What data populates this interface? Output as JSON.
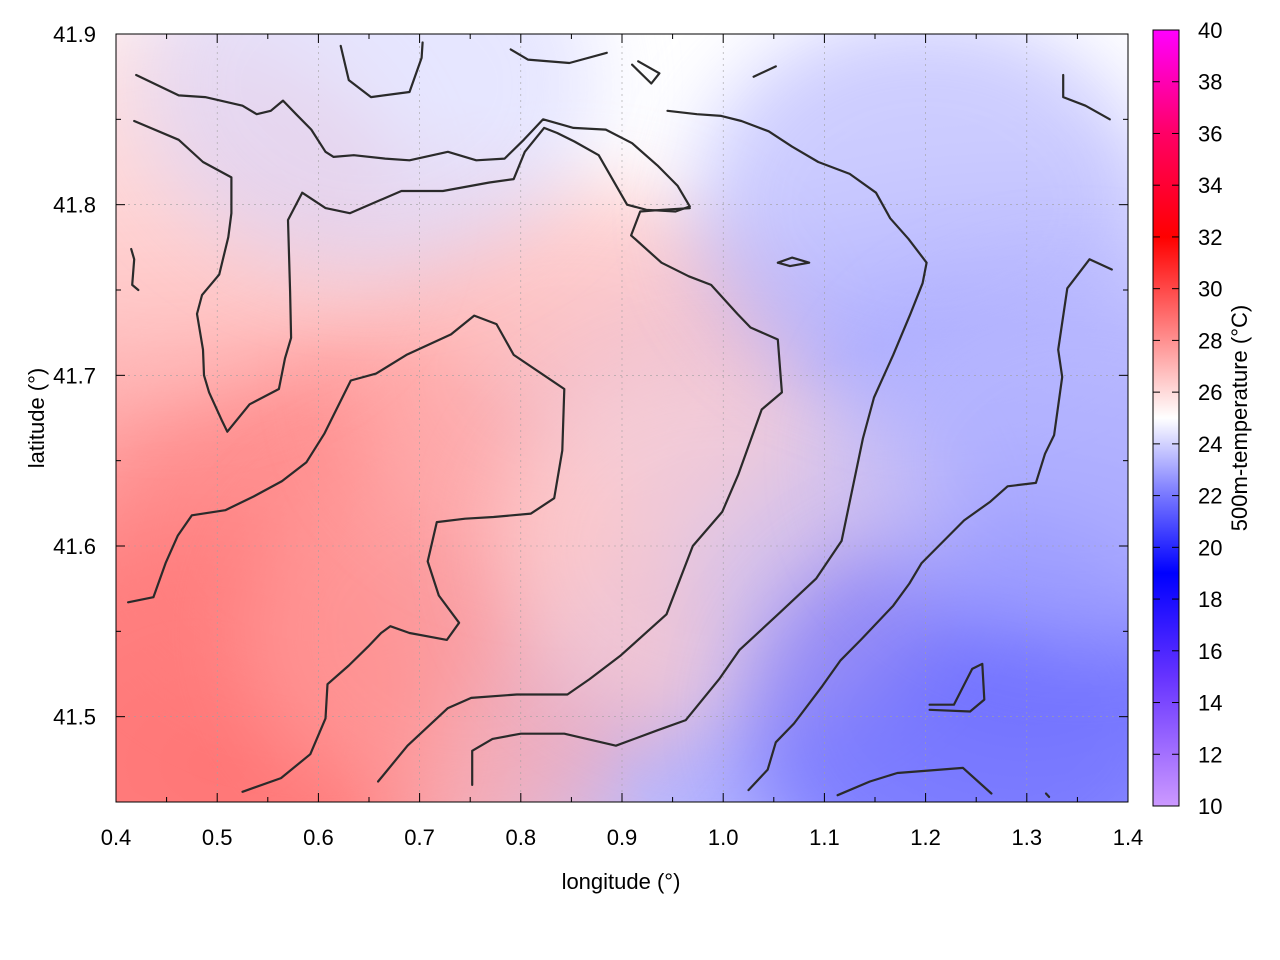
{
  "chart_data": {
    "type": "heatmap",
    "title": "",
    "xlabel": "longitude (°)",
    "ylabel": "latitude (°)",
    "colorbar_label": "500m-temperature (°C)",
    "xlim": [
      0.4,
      1.4
    ],
    "ylim": [
      41.45,
      41.9
    ],
    "x_ticks": [
      "0.4",
      "0.5",
      "0.6",
      "0.7",
      "0.8",
      "0.9",
      "1.0",
      "1.1",
      "1.2",
      "1.3",
      "1.4"
    ],
    "y_ticks": [
      "41.5",
      "41.6",
      "41.7",
      "41.8",
      "41.9"
    ],
    "colorbar_range": [
      10,
      40
    ],
    "colorbar_ticks": [
      "10",
      "12",
      "14",
      "16",
      "18",
      "20",
      "22",
      "24",
      "26",
      "28",
      "30",
      "32",
      "34",
      "36",
      "38",
      "40"
    ],
    "colormap": [
      {
        "value": 10,
        "color": "#cc99ff"
      },
      {
        "value": 15,
        "color": "#6633ff"
      },
      {
        "value": 19,
        "color": "#0000ff"
      },
      {
        "value": 22,
        "color": "#7777ff"
      },
      {
        "value": 25,
        "color": "#ffffff"
      },
      {
        "value": 28,
        "color": "#ff9090"
      },
      {
        "value": 32,
        "color": "#ff0000"
      },
      {
        "value": 36,
        "color": "#ff0066"
      },
      {
        "value": 40,
        "color": "#ff00ff"
      }
    ],
    "grid": true,
    "field_regions": [
      {
        "lon": 0.48,
        "lat": 41.5,
        "temp": 29.0
      },
      {
        "lon": 0.6,
        "lat": 41.6,
        "temp": 28.5
      },
      {
        "lon": 0.75,
        "lat": 41.55,
        "temp": 27.5
      },
      {
        "lon": 0.85,
        "lat": 41.7,
        "temp": 27.0
      },
      {
        "lon": 0.45,
        "lat": 41.8,
        "temp": 26.5
      },
      {
        "lon": 1.0,
        "lat": 41.6,
        "temp": 26.0
      },
      {
        "lon": 0.65,
        "lat": 41.87,
        "temp": 24.0
      },
      {
        "lon": 1.25,
        "lat": 41.5,
        "temp": 21.5
      },
      {
        "lon": 1.2,
        "lat": 41.8,
        "temp": 23.0
      },
      {
        "lon": 1.35,
        "lat": 41.65,
        "temp": 23.5
      }
    ],
    "contours": [
      [
        [
          0.418,
          41.849
        ],
        [
          0.462,
          41.838
        ],
        [
          0.486,
          41.825
        ],
        [
          0.514,
          41.816
        ],
        [
          0.514,
          41.795
        ],
        [
          0.511,
          41.781
        ],
        [
          0.502,
          41.759
        ],
        [
          0.485,
          41.747
        ],
        [
          0.48,
          41.736
        ],
        [
          0.486,
          41.715
        ],
        [
          0.487,
          41.7
        ],
        [
          0.492,
          41.69
        ],
        [
          0.505,
          41.673
        ],
        [
          0.51,
          41.667
        ],
        [
          0.532,
          41.683
        ],
        [
          0.561,
          41.692
        ],
        [
          0.567,
          41.71
        ],
        [
          0.573,
          41.722
        ],
        [
          0.572,
          41.749
        ],
        [
          0.57,
          41.791
        ],
        [
          0.584,
          41.807
        ],
        [
          0.607,
          41.798
        ],
        [
          0.631,
          41.795
        ],
        [
          0.682,
          41.808
        ],
        [
          0.723,
          41.808
        ],
        [
          0.769,
          41.813
        ],
        [
          0.793,
          41.815
        ],
        [
          0.804,
          41.831
        ],
        [
          0.823,
          41.845
        ],
        [
          0.836,
          41.842
        ],
        [
          0.853,
          41.837
        ],
        [
          0.877,
          41.829
        ],
        [
          0.905,
          41.8
        ],
        [
          0.924,
          41.797
        ],
        [
          0.953,
          41.796
        ],
        [
          0.967,
          41.799
        ],
        [
          0.955,
          41.811
        ],
        [
          0.935,
          41.823
        ],
        [
          0.91,
          41.836
        ],
        [
          0.884,
          41.844
        ],
        [
          0.852,
          41.845
        ],
        [
          0.822,
          41.85
        ],
        [
          0.803,
          41.838
        ],
        [
          0.784,
          41.827
        ],
        [
          0.756,
          41.826
        ],
        [
          0.728,
          41.831
        ],
        [
          0.69,
          41.826
        ],
        [
          0.666,
          41.827
        ],
        [
          0.635,
          41.829
        ],
        [
          0.615,
          41.828
        ],
        [
          0.607,
          41.831
        ],
        [
          0.593,
          41.844
        ],
        [
          0.578,
          41.853
        ],
        [
          0.565,
          41.861
        ],
        [
          0.553,
          41.855
        ],
        [
          0.539,
          41.853
        ],
        [
          0.525,
          41.858
        ],
        [
          0.488,
          41.863
        ],
        [
          0.462,
          41.864
        ],
        [
          0.42,
          41.876
        ]
      ],
      [
        [
          0.412,
          41.567
        ],
        [
          0.437,
          41.57
        ],
        [
          0.449,
          41.59
        ],
        [
          0.461,
          41.606
        ],
        [
          0.475,
          41.618
        ],
        [
          0.508,
          41.621
        ],
        [
          0.536,
          41.629
        ],
        [
          0.564,
          41.638
        ],
        [
          0.588,
          41.649
        ],
        [
          0.606,
          41.666
        ],
        [
          0.632,
          41.697
        ],
        [
          0.657,
          41.701
        ],
        [
          0.687,
          41.712
        ],
        [
          0.731,
          41.724
        ],
        [
          0.754,
          41.735
        ],
        [
          0.776,
          41.73
        ],
        [
          0.793,
          41.712
        ],
        [
          0.843,
          41.692
        ],
        [
          0.841,
          41.656
        ],
        [
          0.833,
          41.628
        ],
        [
          0.81,
          41.619
        ],
        [
          0.773,
          41.617
        ],
        [
          0.745,
          41.616
        ],
        [
          0.717,
          41.614
        ],
        [
          0.708,
          41.591
        ],
        [
          0.719,
          41.571
        ],
        [
          0.739,
          41.555
        ],
        [
          0.727,
          41.545
        ],
        [
          0.69,
          41.549
        ],
        [
          0.671,
          41.553
        ],
        [
          0.662,
          41.549
        ],
        [
          0.649,
          41.541
        ],
        [
          0.63,
          41.53
        ],
        [
          0.609,
          41.519
        ],
        [
          0.607,
          41.499
        ],
        [
          0.592,
          41.478
        ],
        [
          0.563,
          41.464
        ],
        [
          0.525,
          41.456
        ]
      ],
      [
        [
          0.659,
          41.462
        ],
        [
          0.688,
          41.483
        ],
        [
          0.728,
          41.505
        ],
        [
          0.751,
          41.511
        ],
        [
          0.796,
          41.513
        ],
        [
          0.846,
          41.513
        ],
        [
          0.868,
          41.522
        ],
        [
          0.899,
          41.536
        ],
        [
          0.944,
          41.56
        ],
        [
          0.97,
          41.6
        ],
        [
          0.999,
          41.62
        ],
        [
          1.015,
          41.642
        ],
        [
          1.038,
          41.68
        ],
        [
          1.058,
          41.69
        ],
        [
          1.054,
          41.721
        ],
        [
          1.027,
          41.728
        ],
        [
          1.014,
          41.736
        ],
        [
          0.988,
          41.753
        ],
        [
          0.966,
          41.758
        ],
        [
          0.939,
          41.766
        ],
        [
          0.909,
          41.782
        ],
        [
          0.918,
          41.796
        ],
        [
          0.94,
          41.797
        ],
        [
          0.967,
          41.798
        ]
      ],
      [
        [
          0.752,
          41.46
        ],
        [
          0.752,
          41.48
        ],
        [
          0.772,
          41.487
        ],
        [
          0.8,
          41.49
        ],
        [
          0.843,
          41.49
        ],
        [
          0.894,
          41.483
        ],
        [
          0.935,
          41.492
        ],
        [
          0.963,
          41.498
        ],
        [
          0.996,
          41.522
        ],
        [
          1.016,
          41.539
        ],
        [
          1.056,
          41.561
        ],
        [
          1.092,
          41.581
        ],
        [
          1.117,
          41.603
        ],
        [
          1.138,
          41.663
        ],
        [
          1.149,
          41.687
        ],
        [
          1.168,
          41.712
        ],
        [
          1.185,
          41.736
        ],
        [
          1.197,
          41.754
        ],
        [
          1.201,
          41.766
        ],
        [
          1.183,
          41.78
        ],
        [
          1.165,
          41.792
        ],
        [
          1.151,
          41.807
        ],
        [
          1.125,
          41.818
        ],
        [
          1.094,
          41.825
        ],
        [
          1.068,
          41.834
        ],
        [
          1.045,
          41.843
        ],
        [
          1.018,
          41.849
        ],
        [
          0.998,
          41.852
        ],
        [
          0.974,
          41.853
        ],
        [
          0.945,
          41.855
        ]
      ],
      [
        [
          1.025,
          41.457
        ],
        [
          1.044,
          41.469
        ],
        [
          1.052,
          41.485
        ],
        [
          1.07,
          41.496
        ],
        [
          1.098,
          41.518
        ],
        [
          1.116,
          41.533
        ],
        [
          1.136,
          41.545
        ],
        [
          1.168,
          41.565
        ],
        [
          1.184,
          41.578
        ],
        [
          1.196,
          41.59
        ],
        [
          1.238,
          41.615
        ],
        [
          1.264,
          41.626
        ],
        [
          1.281,
          41.635
        ],
        [
          1.309,
          41.637
        ],
        [
          1.318,
          41.654
        ],
        [
          1.327,
          41.665
        ],
        [
          1.335,
          41.699
        ],
        [
          1.331,
          41.715
        ],
        [
          1.34,
          41.751
        ],
        [
          1.362,
          41.768
        ],
        [
          1.384,
          41.762
        ]
      ],
      [
        [
          1.113,
          41.454
        ],
        [
          1.145,
          41.462
        ],
        [
          1.172,
          41.467
        ],
        [
          1.237,
          41.47
        ],
        [
          1.265,
          41.455
        ]
      ],
      [
        [
          1.204,
          41.504
        ],
        [
          1.244,
          41.503
        ],
        [
          1.258,
          41.51
        ],
        [
          1.256,
          41.531
        ],
        [
          1.246,
          41.528
        ],
        [
          1.228,
          41.507
        ],
        [
          1.204,
          41.507
        ]
      ],
      [
        [
          1.054,
          41.766
        ],
        [
          1.068,
          41.769
        ],
        [
          1.085,
          41.766
        ],
        [
          1.066,
          41.764
        ],
        [
          1.054,
          41.766
        ]
      ],
      [
        [
          0.422,
          41.75
        ],
        [
          0.416,
          41.753
        ],
        [
          0.418,
          41.768
        ],
        [
          0.415,
          41.774
        ]
      ],
      [
        [
          0.622,
          41.893
        ],
        [
          0.63,
          41.873
        ],
        [
          0.652,
          41.863
        ],
        [
          0.69,
          41.866
        ],
        [
          0.702,
          41.886
        ],
        [
          0.703,
          41.895
        ]
      ],
      [
        [
          0.79,
          41.891
        ],
        [
          0.807,
          41.885
        ],
        [
          0.848,
          41.883
        ],
        [
          0.885,
          41.889
        ]
      ],
      [
        [
          0.916,
          41.884
        ],
        [
          0.937,
          41.877
        ],
        [
          0.929,
          41.871
        ],
        [
          0.91,
          41.882
        ]
      ],
      [
        [
          1.03,
          41.875
        ],
        [
          1.052,
          41.881
        ]
      ],
      [
        [
          1.336,
          41.876
        ],
        [
          1.336,
          41.863
        ],
        [
          1.358,
          41.858
        ],
        [
          1.382,
          41.85
        ]
      ],
      [
        [
          1.322,
          41.453
        ],
        [
          1.319,
          41.455
        ]
      ]
    ]
  }
}
